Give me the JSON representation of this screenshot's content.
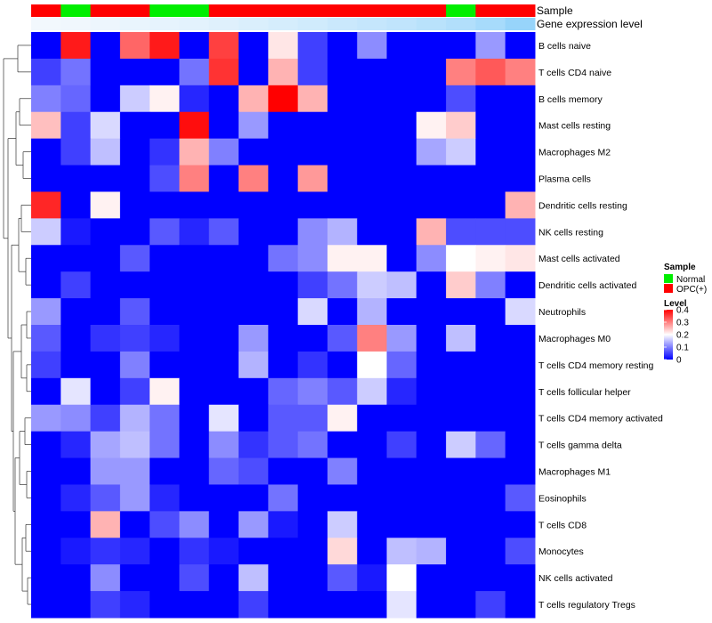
{
  "chart_data": {
    "type": "heatmap",
    "annotation_rows": [
      {
        "name": "Sample"
      },
      {
        "name": "Gene expression level"
      }
    ],
    "sample_groups": [
      "OPC(+)",
      "Normal",
      "OPC(+)",
      "OPC(+)",
      "Normal",
      "Normal",
      "OPC(+)",
      "OPC(+)",
      "OPC(+)",
      "OPC(+)",
      "OPC(+)",
      "OPC(+)",
      "OPC(+)",
      "OPC(+)",
      "Normal",
      "OPC(+)",
      "OPC(+)"
    ],
    "expression_level_annotation": [
      0.0,
      0.02,
      0.05,
      0.08,
      0.11,
      0.14,
      0.18,
      0.22,
      0.27,
      0.32,
      0.37,
      0.42,
      0.47,
      0.53,
      0.6,
      0.7,
      0.85
    ],
    "rows": [
      "B cells naive",
      "T cells CD4 naive",
      "B cells memory",
      "Mast cells resting",
      "Macrophages M2",
      "Plasma cells",
      "Dendritic cells resting",
      "NK cells resting",
      "Mast cells activated",
      "Dendritic cells activated",
      "Neutrophils",
      "Macrophages M0",
      "T cells CD4 memory resting",
      "T cells follicular helper",
      "T cells CD4 memory activated",
      "T cells gamma delta",
      "Macrophages M1",
      "Eosinophils",
      "T cells CD8",
      "Monocytes",
      "NK cells activated",
      "T cells regulatory  Tregs"
    ],
    "values": [
      [
        0.0,
        0.38,
        0.0,
        0.32,
        0.38,
        0.0,
        0.35,
        0.0,
        0.22,
        0.05,
        0.0,
        0.11,
        0.0,
        0.0,
        0.0,
        0.12,
        0.0
      ],
      [
        0.05,
        0.09,
        0.0,
        0.0,
        0.0,
        0.09,
        0.36,
        0.0,
        0.26,
        0.05,
        0.0,
        0.0,
        0.0,
        0.0,
        0.3,
        0.33,
        0.3
      ],
      [
        0.1,
        0.08,
        0.0,
        0.16,
        0.21,
        0.03,
        0.0,
        0.26,
        0.4,
        0.26,
        0.0,
        0.0,
        0.0,
        0.0,
        0.06,
        0.0,
        0.0
      ],
      [
        0.25,
        0.05,
        0.17,
        0.0,
        0.0,
        0.39,
        0.0,
        0.12,
        0.0,
        0.0,
        0.0,
        0.0,
        0.0,
        0.21,
        0.24,
        0.0,
        0.0
      ],
      [
        0.0,
        0.05,
        0.15,
        0.0,
        0.04,
        0.26,
        0.1,
        0.0,
        0.0,
        0.0,
        0.0,
        0.0,
        0.0,
        0.13,
        0.16,
        0.0,
        0.0
      ],
      [
        0.0,
        0.0,
        0.0,
        0.0,
        0.06,
        0.3,
        0.0,
        0.3,
        0.0,
        0.28,
        0.0,
        0.0,
        0.0,
        0.0,
        0.0,
        0.0,
        0.0
      ],
      [
        0.37,
        0.0,
        0.21,
        0.0,
        0.0,
        0.0,
        0.0,
        0.0,
        0.0,
        0.0,
        0.0,
        0.0,
        0.0,
        0.0,
        0.0,
        0.0,
        0.26
      ],
      [
        0.16,
        0.02,
        0.0,
        0.0,
        0.07,
        0.03,
        0.07,
        0.0,
        0.0,
        0.11,
        0.14,
        0.0,
        0.0,
        0.26,
        0.06,
        0.06,
        0.06
      ],
      [
        0.0,
        0.0,
        0.0,
        0.07,
        0.0,
        0.0,
        0.0,
        0.0,
        0.09,
        0.11,
        0.21,
        0.21,
        0.0,
        0.11,
        0.2,
        0.21,
        0.22
      ],
      [
        0.0,
        0.05,
        0.0,
        0.0,
        0.0,
        0.0,
        0.0,
        0.0,
        0.0,
        0.05,
        0.09,
        0.16,
        0.15,
        0.0,
        0.24,
        0.1,
        0.0
      ],
      [
        0.12,
        0.0,
        0.0,
        0.07,
        0.0,
        0.0,
        0.0,
        0.0,
        0.0,
        0.17,
        0.0,
        0.14,
        0.0,
        0.0,
        0.0,
        0.0,
        0.17
      ],
      [
        0.07,
        0.0,
        0.04,
        0.05,
        0.03,
        0.0,
        0.0,
        0.12,
        0.0,
        0.0,
        0.07,
        0.3,
        0.12,
        0.0,
        0.15,
        0.0,
        0.0
      ],
      [
        0.05,
        0.0,
        0.0,
        0.1,
        0.0,
        0.0,
        0.0,
        0.14,
        0.0,
        0.04,
        0.0,
        0.2,
        0.08,
        0.0,
        0.0,
        0.0,
        0.0
      ],
      [
        0.0,
        0.18,
        0.0,
        0.05,
        0.21,
        0.0,
        0.0,
        0.0,
        0.08,
        0.1,
        0.07,
        0.16,
        0.03,
        0.0,
        0.0,
        0.0,
        0.0
      ],
      [
        0.12,
        0.11,
        0.05,
        0.14,
        0.09,
        0.0,
        0.18,
        0.0,
        0.07,
        0.07,
        0.21,
        0.0,
        0.0,
        0.0,
        0.0,
        0.0,
        0.0
      ],
      [
        0.0,
        0.03,
        0.13,
        0.15,
        0.09,
        0.0,
        0.11,
        0.04,
        0.07,
        0.09,
        0.0,
        0.0,
        0.05,
        0.0,
        0.16,
        0.08,
        0.0
      ],
      [
        0.0,
        0.0,
        0.12,
        0.12,
        0.0,
        0.0,
        0.08,
        0.06,
        0.0,
        0.0,
        0.1,
        0.0,
        0.0,
        0.0,
        0.0,
        0.0,
        0.0
      ],
      [
        0.0,
        0.03,
        0.07,
        0.12,
        0.03,
        0.0,
        0.0,
        0.0,
        0.09,
        0.0,
        0.0,
        0.0,
        0.0,
        0.0,
        0.0,
        0.0,
        0.07
      ],
      [
        0.0,
        0.0,
        0.26,
        0.0,
        0.06,
        0.11,
        0.0,
        0.12,
        0.02,
        0.0,
        0.16,
        0.0,
        0.0,
        0.0,
        0.0,
        0.0,
        0.0
      ],
      [
        0.0,
        0.02,
        0.04,
        0.03,
        0.0,
        0.04,
        0.02,
        0.0,
        0.0,
        0.0,
        0.23,
        0.0,
        0.15,
        0.14,
        0.0,
        0.0,
        0.06
      ],
      [
        0.0,
        0.0,
        0.11,
        0.0,
        0.0,
        0.06,
        0.0,
        0.15,
        0.0,
        0.0,
        0.07,
        0.02,
        0.2,
        0.0,
        0.0,
        0.0,
        0.0
      ],
      [
        0.0,
        0.0,
        0.05,
        0.03,
        0.0,
        0.0,
        0.0,
        0.05,
        0.0,
        0.0,
        0.0,
        0.0,
        0.18,
        0.0,
        0.0,
        0.05,
        0.0
      ]
    ],
    "color_scale": {
      "min": 0,
      "mid": 0.2,
      "max": 0.4,
      "low_color": "#0000ff",
      "mid_color": "#ffffff",
      "high_color": "#ff0000"
    },
    "legend": {
      "position": "right",
      "sample_title": "Sample",
      "sample_entries": [
        {
          "label": "Normal",
          "color": "#00ee00"
        },
        {
          "label": "OPC(+)",
          "color": "#ff0000"
        }
      ],
      "level_title": "Level",
      "level_ticks": [
        {
          "value": 0.4,
          "label": "0.4"
        },
        {
          "value": 0.3,
          "label": "0.3"
        },
        {
          "value": 0.2,
          "label": "0.2"
        },
        {
          "value": 0.1,
          "label": "0.1"
        },
        {
          "value": 0.0,
          "label": "0"
        }
      ]
    },
    "expression_annotation_colors": {
      "low": "#f2f8fd",
      "high": "#87cefa"
    },
    "group_colors": {
      "Normal": "#00ee00",
      "OPC(+)": "#ff0000"
    },
    "row_dendrogram": "shown on left"
  }
}
